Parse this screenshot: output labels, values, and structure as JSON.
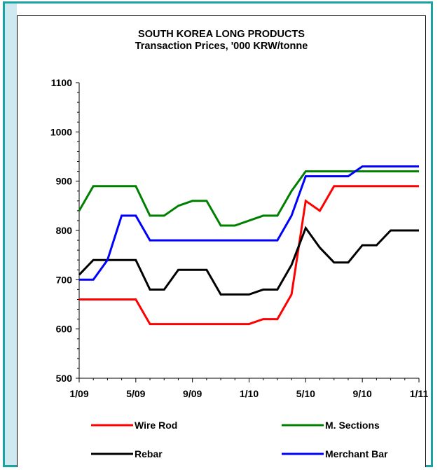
{
  "chart_data": {
    "type": "line",
    "title": "SOUTH KOREA LONG PRODUCTS",
    "subtitle": "Transaction Prices, '000 KRW/tonne",
    "ylim": [
      500,
      1100
    ],
    "yticks": [
      "1100",
      "1000",
      "900",
      "800",
      "700",
      "600",
      "500"
    ],
    "xticks": [
      "1/09",
      "5/09",
      "9/09",
      "1/10",
      "5/10",
      "9/10",
      "1/11"
    ],
    "x": [
      "1/09",
      "2/09",
      "3/09",
      "4/09",
      "5/09",
      "6/09",
      "7/09",
      "8/09",
      "9/09",
      "10/09",
      "11/09",
      "12/09",
      "1/10",
      "2/10",
      "3/10",
      "4/10",
      "5/10",
      "6/10",
      "7/10",
      "8/10",
      "9/10",
      "10/10",
      "11/10",
      "12/10",
      "1/11"
    ],
    "series": [
      {
        "name": "Wire Rod",
        "color": "#ff0000",
        "values": [
          660,
          660,
          660,
          660,
          660,
          610,
          610,
          610,
          610,
          610,
          610,
          610,
          610,
          620,
          620,
          670,
          860,
          840,
          890,
          890,
          890,
          890,
          890,
          890,
          890
        ]
      },
      {
        "name": "M. Sections",
        "color": "#008000",
        "values": [
          840,
          890,
          890,
          890,
          890,
          830,
          830,
          850,
          860,
          860,
          810,
          810,
          820,
          830,
          830,
          880,
          920,
          920,
          920,
          920,
          920,
          920,
          920,
          920,
          920
        ]
      },
      {
        "name": "Rebar",
        "color": "#000000",
        "values": [
          710,
          740,
          740,
          740,
          740,
          680,
          680,
          720,
          720,
          720,
          670,
          670,
          670,
          680,
          680,
          730,
          805,
          765,
          735,
          735,
          770,
          770,
          800,
          800,
          800
        ]
      },
      {
        "name": "Merchant Bar",
        "color": "#0000ff",
        "values": [
          700,
          700,
          740,
          830,
          830,
          780,
          780,
          780,
          780,
          780,
          780,
          780,
          780,
          780,
          780,
          830,
          910,
          910,
          910,
          910,
          930,
          930,
          930,
          930,
          930
        ]
      }
    ],
    "grid": false,
    "legend": "bottom"
  }
}
